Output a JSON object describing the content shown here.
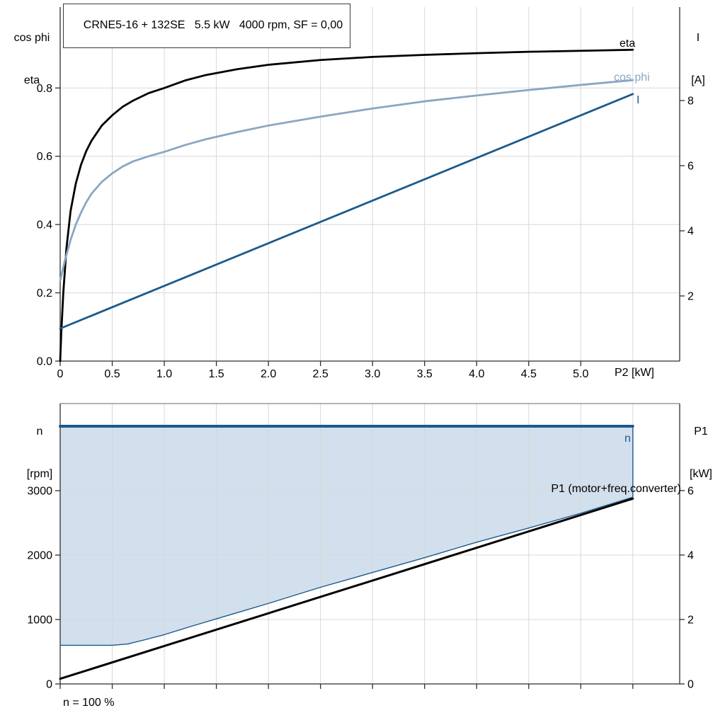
{
  "colors": {
    "grid": "#d8d8d8",
    "axis": "#2e2e2e",
    "black": "#000000",
    "dark_blue": "#1c5a8a",
    "light_blue": "#8aa6c3",
    "area_fill": "#d2dfec"
  },
  "chart_data": [
    {
      "type": "line",
      "title": "CRNE5-16 + 132SE   5.5 kW   4000 rpm, SF = 0,00",
      "xlabel": "P2 [kW]",
      "ylabel_left": [
        "cos phi",
        "eta"
      ],
      "ylabel_right": [
        "I",
        "[A]"
      ],
      "xlim": [
        0,
        5.95
      ],
      "x_grid": [
        0.5,
        1,
        1.5,
        2,
        2.5,
        3,
        3.5,
        4,
        4.5,
        5,
        5.5
      ],
      "x_ticks": [
        0,
        0.5,
        1,
        1.5,
        2,
        2.5,
        3,
        3.5,
        4,
        4.5,
        5
      ],
      "x_tick_labels": [
        "0",
        "0.5",
        "1.0",
        "1.5",
        "2.0",
        "2.5",
        "3.0",
        "3.5",
        "4.0",
        "4.5",
        "5.0"
      ],
      "left_axis": {
        "lim": [
          0,
          1.037
        ],
        "ticks": [
          0,
          0.2,
          0.4,
          0.6,
          0.8
        ],
        "tick_labels": [
          "0.0",
          "0.2",
          "0.4",
          "0.6",
          "0.8"
        ],
        "grid": [
          0.2,
          0.4,
          0.6,
          0.8
        ]
      },
      "right_axis": {
        "lim": [
          0,
          10.87
        ],
        "ticks": [
          2,
          4,
          6,
          8
        ],
        "tick_labels": [
          "2",
          "4",
          "6",
          "8"
        ]
      },
      "series": [
        {
          "id": "eta",
          "name": "eta",
          "axis": "left",
          "color": "#000000",
          "width": 2.8,
          "points": [
            [
              0,
              0
            ],
            [
              0.01,
              0.08
            ],
            [
              0.03,
              0.2
            ],
            [
              0.06,
              0.33
            ],
            [
              0.1,
              0.44
            ],
            [
              0.15,
              0.52
            ],
            [
              0.2,
              0.575
            ],
            [
              0.25,
              0.615
            ],
            [
              0.3,
              0.645
            ],
            [
              0.4,
              0.69
            ],
            [
              0.5,
              0.72
            ],
            [
              0.6,
              0.745
            ],
            [
              0.7,
              0.763
            ],
            [
              0.85,
              0.785
            ],
            [
              1,
              0.8
            ],
            [
              1.2,
              0.822
            ],
            [
              1.4,
              0.838
            ],
            [
              1.7,
              0.855
            ],
            [
              2,
              0.868
            ],
            [
              2.5,
              0.882
            ],
            [
              3,
              0.891
            ],
            [
              3.5,
              0.897
            ],
            [
              4,
              0.902
            ],
            [
              4.5,
              0.906
            ],
            [
              5,
              0.909
            ],
            [
              5.5,
              0.912
            ]
          ]
        },
        {
          "id": "cos-phi",
          "name": "cos phi",
          "axis": "left",
          "color": "#8aa6c3",
          "width": 2.8,
          "points": [
            [
              0,
              0.235
            ],
            [
              0.02,
              0.262
            ],
            [
              0.05,
              0.3
            ],
            [
              0.1,
              0.355
            ],
            [
              0.15,
              0.4
            ],
            [
              0.2,
              0.435
            ],
            [
              0.25,
              0.465
            ],
            [
              0.3,
              0.49
            ],
            [
              0.4,
              0.525
            ],
            [
              0.5,
              0.55
            ],
            [
              0.6,
              0.57
            ],
            [
              0.7,
              0.585
            ],
            [
              0.85,
              0.6
            ],
            [
              1,
              0.613
            ],
            [
              1.2,
              0.633
            ],
            [
              1.4,
              0.65
            ],
            [
              1.7,
              0.671
            ],
            [
              2,
              0.69
            ],
            [
              2.5,
              0.716
            ],
            [
              3,
              0.74
            ],
            [
              3.5,
              0.761
            ],
            [
              4,
              0.778
            ],
            [
              4.5,
              0.794
            ],
            [
              5,
              0.809
            ],
            [
              5.5,
              0.823
            ]
          ]
        },
        {
          "id": "current",
          "name": "I",
          "axis": "right",
          "color": "#1c5a8a",
          "width": 2.8,
          "points": [
            [
              0,
              1.0
            ],
            [
              5.5,
              8.2
            ]
          ]
        }
      ]
    },
    {
      "type": "line",
      "xlabel": "",
      "footnote": "n = 100 %",
      "ylabel_left": [
        "n",
        "[rpm]"
      ],
      "ylabel_right": [
        "P1",
        "[kW]"
      ],
      "xlim": [
        0,
        5.95
      ],
      "x_grid": [
        0.5,
        1,
        1.5,
        2,
        2.5,
        3,
        3.5,
        4,
        4.5,
        5,
        5.5
      ],
      "x_ticks": [
        0,
        0.5,
        1,
        1.5,
        2,
        2.5,
        3,
        3.5,
        4,
        4.5,
        5,
        5.5
      ],
      "x_tick_labels": null,
      "left_axis": {
        "lim": [
          0,
          4352
        ],
        "ticks": [
          0,
          1000,
          2000,
          3000
        ],
        "tick_labels": [
          "0",
          "1000",
          "2000",
          "3000"
        ],
        "grid": [
          1000,
          2000,
          3000
        ]
      },
      "right_axis": {
        "lim": [
          0,
          8.7
        ],
        "ticks": [
          0,
          2,
          4,
          6
        ],
        "tick_labels": [
          "0",
          "2",
          "4",
          "6"
        ]
      },
      "area": {
        "bottom_series": "n min",
        "top_series": "n",
        "fill": "#d2dfec"
      },
      "series": [
        {
          "id": "speed",
          "name": "n",
          "axis": "left",
          "color": "#1c5a8a",
          "width": 4,
          "points": [
            [
              0,
              4000
            ],
            [
              5.5,
              4000
            ]
          ]
        },
        {
          "id": "speed-min-boundary",
          "name": "n min",
          "axis": "left",
          "color": "#1c5a8a",
          "width": 1.4,
          "points": [
            [
              0,
              600
            ],
            [
              0.5,
              600
            ],
            [
              0.65,
              620
            ],
            [
              0.8,
              680
            ],
            [
              1,
              765
            ],
            [
              1.25,
              890
            ],
            [
              1.5,
              1010
            ],
            [
              1.75,
              1130
            ],
            [
              2,
              1250
            ],
            [
              2.25,
              1375
            ],
            [
              2.5,
              1500
            ],
            [
              3,
              1730
            ],
            [
              3.5,
              1960
            ],
            [
              4,
              2200
            ],
            [
              4.5,
              2420
            ],
            [
              5,
              2650
            ],
            [
              5.5,
              2900
            ],
            [
              5.5,
              4000
            ]
          ]
        },
        {
          "id": "p1",
          "name": "P1 (motor+freq.converter)",
          "axis": "right",
          "color": "#000000",
          "width": 3,
          "points": [
            [
              0,
              0.16
            ],
            [
              5.5,
              5.75
            ]
          ]
        }
      ]
    }
  ]
}
